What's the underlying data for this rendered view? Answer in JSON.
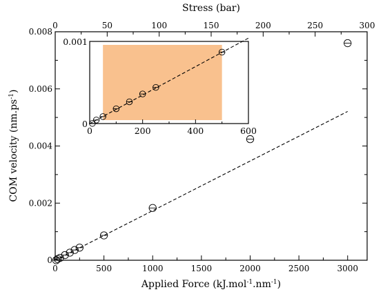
{
  "chart_data": {
    "type": "scatter",
    "main": {
      "xlabel": "Applied Force (kJ.mol",
      "xlabel_sup1": "-1",
      "xlabel_mid": ".nm",
      "xlabel_sup2": "-1",
      "xlabel_end": ")",
      "ylabel": "COM velocity (nm.ps",
      "ylabel_sup": "-1",
      "ylabel_end": ")",
      "top_xlabel": "Stress (bar)",
      "xlim": [
        0,
        3200
      ],
      "ylim": [
        0,
        0.008
      ],
      "x_ticks": [
        "0",
        "500",
        "1000",
        "1500",
        "2000",
        "2500",
        "3000"
      ],
      "y_ticks": [
        "0",
        "0.002",
        "0.004",
        "0.006",
        "0.008"
      ],
      "top_xlim": [
        0,
        300
      ],
      "top_ticks": [
        "0",
        "50",
        "100",
        "150",
        "200",
        "250",
        "300"
      ],
      "series": [
        {
          "x": [
            10,
            25,
            50,
            100,
            150,
            200,
            250,
            500,
            1000,
            2000,
            3000
          ],
          "y": [
            1.5e-06,
            4.3e-05,
            8.5e-05,
            0.00018,
            0.000265,
            0.00036,
            0.00044,
            0.00087,
            0.00183,
            0.00424,
            0.0076
          ]
        }
      ],
      "fit_line": {
        "x": [
          0,
          3000
        ],
        "y": [
          0,
          0.00521
        ]
      }
    },
    "inset": {
      "xlim": [
        0,
        600
      ],
      "ylim": [
        0,
        0.001
      ],
      "x_ticks": [
        "0",
        "200",
        "400",
        "600"
      ],
      "y_ticks": [
        "0",
        "0.001"
      ],
      "highlight_x": [
        50,
        500
      ],
      "highlight_color": "#f9c18e",
      "series": [
        {
          "x": [
            10,
            25,
            50,
            100,
            150,
            200,
            250,
            500
          ],
          "y": [
            1.5e-06,
            4.3e-05,
            8.5e-05,
            0.00018,
            0.000265,
            0.00036,
            0.00044,
            0.00087
          ]
        }
      ],
      "fit_line": {
        "x": [
          0,
          600
        ],
        "y": [
          0,
          0.00104
        ]
      }
    }
  }
}
